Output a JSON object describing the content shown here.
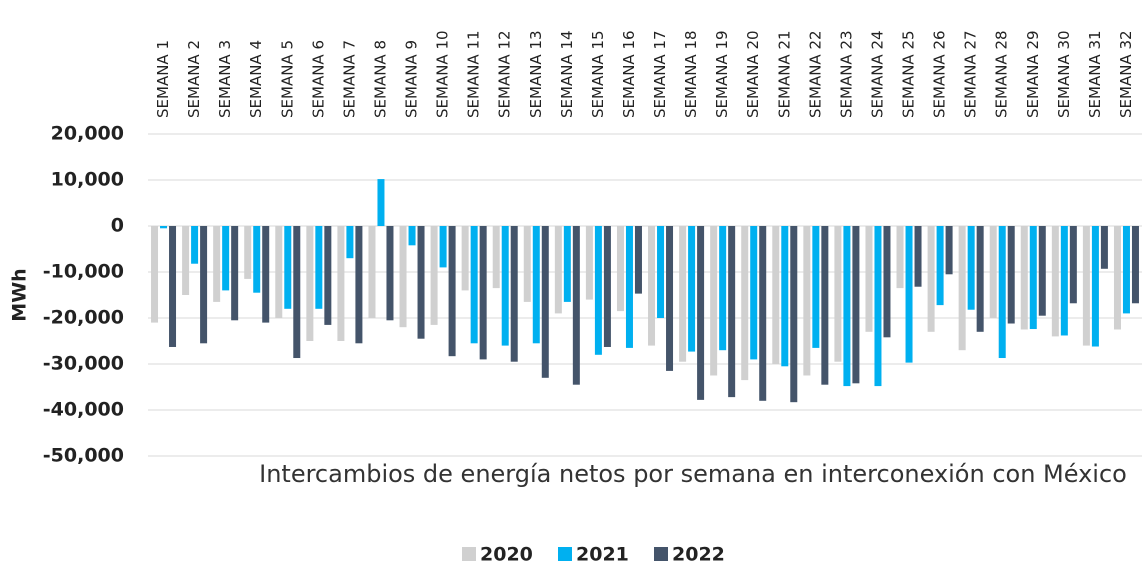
{
  "chart_data": {
    "type": "bar",
    "title": "Intercambios de energía netos por semana en interconexión con México",
    "y_label": "MWh",
    "categories": [
      "SEMANA 1",
      "SEMANA 2",
      "SEMANA 3",
      "SEMANA 4",
      "SEMANA 5",
      "SEMANA 6",
      "SEMANA 7",
      "SEMANA 8",
      "SEMANA 9",
      "SEMANA 10",
      "SEMANA 11",
      "SEMANA 12",
      "SEMANA 13",
      "SEMANA 14",
      "SEMANA 15",
      "SEMANA 16",
      "SEMANA 17",
      "SEMANA 18",
      "SEMANA 19",
      "SEMANA 20",
      "SEMANA 21",
      "SEMANA 22",
      "SEMANA 23",
      "SEMANA 24",
      "SEMANA 25",
      "SEMANA 26",
      "SEMANA 27",
      "SEMANA 28",
      "SEMANA 29",
      "SEMANA 30",
      "SEMANA 31",
      "SEMANA 32"
    ],
    "series": [
      {
        "name": "2020",
        "color": "#d0d0d0",
        "values": [
          -21000,
          -15000,
          -16500,
          -11500,
          -20000,
          -25000,
          -25000,
          -20000,
          -22000,
          -21500,
          -14000,
          -13500,
          -16500,
          -19000,
          -16000,
          -18500,
          -26000,
          -29500,
          -32500,
          -33500,
          -30000,
          -32500,
          -29500,
          -23000,
          -13500,
          -23000,
          -27000,
          -20000,
          -22500,
          -24000,
          -26000,
          -22500
        ]
      },
      {
        "name": "2021",
        "color": "#00b0f0",
        "values": [
          -500,
          -8200,
          -14000,
          -14500,
          -18000,
          -18000,
          -7000,
          10200,
          -4200,
          -9000,
          -25500,
          -26000,
          -25500,
          -16500,
          -28000,
          -26500,
          -20000,
          -27300,
          -27000,
          -29000,
          -30500,
          -26500,
          -34800,
          -34800,
          -29700,
          -17200,
          -18200,
          -28700,
          -22400,
          -23800,
          -26200,
          -19000
        ]
      },
      {
        "name": "2022",
        "color": "#44546a",
        "values": [
          -26300,
          -25500,
          -20500,
          -21000,
          -28700,
          -21500,
          -25500,
          -20500,
          -24500,
          -28300,
          -29000,
          -29500,
          -33000,
          -34500,
          -26300,
          -14700,
          -31500,
          -37800,
          -37200,
          -38000,
          -38300,
          -34500,
          -34200,
          -24200,
          -13200,
          -10500,
          -23000,
          -21200,
          -19500,
          -16800,
          -9300,
          -16800
        ]
      }
    ],
    "ylim": [
      -50000,
      20000
    ],
    "yticks": [
      {
        "value": -50000,
        "label": "-50,000"
      },
      {
        "value": -40000,
        "label": "-40,000"
      },
      {
        "value": -30000,
        "label": "-30,000"
      },
      {
        "value": -20000,
        "label": "-20,000"
      },
      {
        "value": -10000,
        "label": "-10,000"
      },
      {
        "value": 0,
        "label": "0"
      },
      {
        "value": 10000,
        "label": "10,000"
      },
      {
        "value": 20000,
        "label": "20,000"
      }
    ],
    "grid": true
  }
}
